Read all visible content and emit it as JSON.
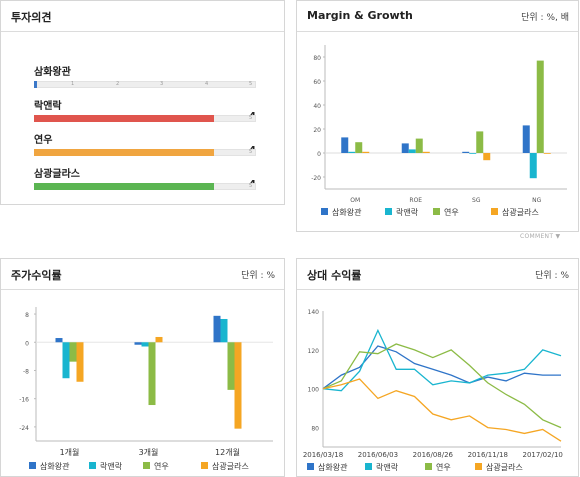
{
  "opinion": {
    "title": "투자의견",
    "ticks": [
      "1",
      "2",
      "3",
      "4",
      "5"
    ],
    "rows": [
      {
        "name": "삼화왕관",
        "value": "",
        "score": 0,
        "color": "#3b78c8"
      },
      {
        "name": "락앤락",
        "value": "4",
        "score": 4,
        "color": "#e0554d"
      },
      {
        "name": "연우",
        "value": "4",
        "score": 4,
        "color": "#f0a540"
      },
      {
        "name": "삼광글라스",
        "value": "4",
        "score": 4,
        "color": "#5bb552"
      }
    ]
  },
  "margin": {
    "title": "Margin & Growth",
    "unit": "단위 : %, 배",
    "comment": "COMMENT",
    "chart_data": {
      "type": "bar",
      "categories": [
        "OM",
        "ROE",
        "SG",
        "NG"
      ],
      "ylim": [
        -30,
        90
      ],
      "yticks": [
        -20,
        0,
        20,
        40,
        60,
        80
      ],
      "series": [
        {
          "name": "삼화왕관",
          "color": "#2f74c8",
          "values": [
            13,
            8,
            1,
            23
          ]
        },
        {
          "name": "락앤락",
          "color": "#19b5cf",
          "values": [
            1,
            3,
            0,
            -21
          ]
        },
        {
          "name": "연우",
          "color": "#8cbb46",
          "values": [
            9,
            12,
            18,
            77
          ]
        },
        {
          "name": "삼광글라스",
          "color": "#f5a623",
          "values": [
            1,
            1,
            -6,
            0
          ]
        }
      ]
    }
  },
  "stock": {
    "title": "주가수익률",
    "unit": "단위 : %",
    "chart_data": {
      "type": "bar",
      "categories": [
        "1개월",
        "3개월",
        "12개월"
      ],
      "ylim": [
        -28,
        10
      ],
      "yticks": [
        8,
        0,
        -8,
        -16,
        -24
      ],
      "series": [
        {
          "name": "삼화왕관",
          "color": "#2f74c8",
          "values": [
            1.2,
            -0.7,
            7.5
          ]
        },
        {
          "name": "락앤락",
          "color": "#19b5cf",
          "values": [
            -10.2,
            -1.2,
            6.6
          ]
        },
        {
          "name": "연우",
          "color": "#8cbb46",
          "values": [
            -5.5,
            -17.8,
            -13.5
          ]
        },
        {
          "name": "삼광글라스",
          "color": "#f5a623",
          "values": [
            -11.2,
            1.5,
            -24.5
          ]
        }
      ]
    }
  },
  "relative": {
    "title": "상대 수익률",
    "unit": "단위 : %",
    "chart_data": {
      "type": "line",
      "x": [
        "2016/03/18",
        "2016/04/15",
        "2016/05/13",
        "2016/06/03",
        "2016/07/01",
        "2016/07/29",
        "2016/08/26",
        "2016/09/23",
        "2016/10/21",
        "2016/11/18",
        "2016/12/16",
        "2017/01/13",
        "2017/02/10",
        "2017/03/10"
      ],
      "xticks": [
        "2016/03/18",
        "2016/06/03",
        "2016/08/26",
        "2016/11/18",
        "2017/02/10"
      ],
      "ylim": [
        70,
        140
      ],
      "yticks": [
        140,
        120,
        100,
        80
      ],
      "series": [
        {
          "name": "삼화왕관",
          "color": "#2f74c8",
          "values": [
            100,
            107,
            111,
            122,
            119,
            113,
            110,
            107,
            103,
            106,
            104,
            108,
            107,
            107
          ]
        },
        {
          "name": "락앤락",
          "color": "#19b5cf",
          "values": [
            100,
            99,
            109,
            130,
            110,
            110,
            102,
            104,
            103,
            107,
            108,
            110,
            120,
            117
          ]
        },
        {
          "name": "연우",
          "color": "#8cbb46",
          "values": [
            100,
            104,
            119,
            118,
            123,
            120,
            116,
            120,
            112,
            103,
            97,
            92,
            84,
            80
          ]
        },
        {
          "name": "삼광글라스",
          "color": "#f5a623",
          "values": [
            100,
            102,
            105,
            95,
            99,
            96,
            87,
            84,
            86,
            80,
            79,
            77,
            79,
            73
          ]
        }
      ]
    }
  }
}
